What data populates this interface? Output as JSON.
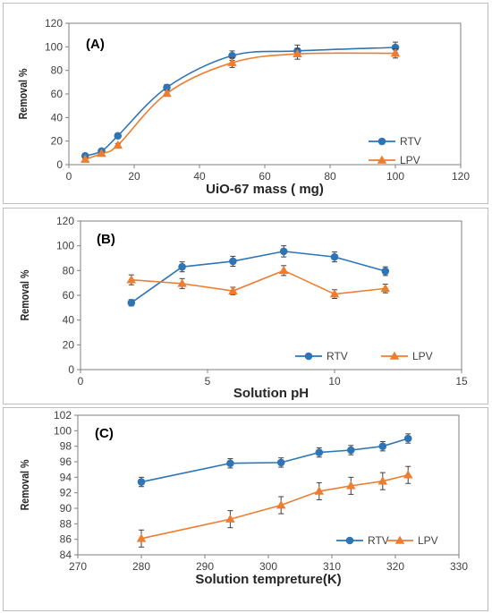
{
  "chart_data": [
    {
      "type": "line",
      "panel_label": "(A)",
      "xlabel": "UiO-67 mass ( mg)",
      "ylabel": "Removal %",
      "xlim": [
        0,
        120
      ],
      "ylim": [
        0,
        120
      ],
      "xticks": [
        0,
        20,
        40,
        60,
        80,
        100,
        120
      ],
      "yticks": [
        0,
        20,
        40,
        60,
        80,
        100,
        120
      ],
      "grid": false,
      "legend": "bottom-right, stacked",
      "series": [
        {
          "name": "RTV",
          "color": "#2e75b6",
          "marker": "circle",
          "smooth": true,
          "x": [
            5,
            10,
            15,
            30,
            50,
            70,
            100
          ],
          "y": [
            7.5,
            11.5,
            24.5,
            65.5,
            92.5,
            96.5,
            99.5
          ],
          "err": [
            1,
            1,
            1.5,
            2.5,
            4,
            5,
            4.5
          ]
        },
        {
          "name": "LPV",
          "color": "#ed7d31",
          "marker": "triangle",
          "smooth": true,
          "x": [
            5,
            10,
            15,
            30,
            50,
            70,
            100
          ],
          "y": [
            4.5,
            9.5,
            16.5,
            60.5,
            86.5,
            94,
            94.5
          ],
          "err": [
            1,
            1,
            1.5,
            2.5,
            4,
            4.5,
            4
          ]
        }
      ]
    },
    {
      "type": "line",
      "panel_label": "(B)",
      "xlabel": "Solution pH",
      "ylabel": "Removal %",
      "xlim": [
        0,
        15
      ],
      "ylim": [
        0,
        120
      ],
      "xticks": [
        0,
        5,
        10,
        15
      ],
      "yticks": [
        0,
        20,
        40,
        60,
        80,
        100,
        120
      ],
      "grid": false,
      "legend": "bottom-right, side by side",
      "series": [
        {
          "name": "RTV",
          "color": "#2e75b6",
          "marker": "circle",
          "smooth": false,
          "x": [
            2,
            4,
            6,
            8,
            10,
            12
          ],
          "y": [
            54,
            83,
            87.5,
            95.5,
            91,
            79.5
          ],
          "err": [
            2.5,
            4,
            4,
            4.5,
            4,
            3.5
          ]
        },
        {
          "name": "LPV",
          "color": "#ed7d31",
          "marker": "triangle",
          "smooth": false,
          "x": [
            2,
            4,
            6,
            8,
            10,
            12
          ],
          "y": [
            72.5,
            69.5,
            63.5,
            80,
            61,
            65.5
          ],
          "err": [
            4,
            4,
            3,
            4,
            3.5,
            3.5
          ]
        }
      ]
    },
    {
      "type": "line",
      "panel_label": "(C)",
      "xlabel": "Solution tempreture(K)",
      "ylabel": "Removal %",
      "xlim": [
        270,
        330
      ],
      "ylim": [
        84,
        102
      ],
      "xticks": [
        270,
        280,
        290,
        300,
        310,
        320,
        330
      ],
      "yticks": [
        84,
        86,
        88,
        90,
        92,
        94,
        96,
        98,
        100,
        102
      ],
      "grid": false,
      "legend": "bottom-right, side by side",
      "series": [
        {
          "name": "RTV",
          "color": "#2e75b6",
          "marker": "circle",
          "smooth": false,
          "x": [
            280,
            294,
            302,
            308,
            313,
            318,
            322
          ],
          "y": [
            93.4,
            95.8,
            95.9,
            97.2,
            97.5,
            98.0,
            99.0
          ],
          "err": [
            0.6,
            0.6,
            0.6,
            0.6,
            0.6,
            0.6,
            0.6
          ]
        },
        {
          "name": "LPV",
          "color": "#ed7d31",
          "marker": "triangle",
          "smooth": false,
          "x": [
            280,
            294,
            302,
            308,
            313,
            318,
            322
          ],
          "y": [
            86.1,
            88.6,
            90.4,
            92.2,
            92.9,
            93.5,
            94.3
          ],
          "err": [
            1.1,
            1.1,
            1.1,
            1.1,
            1.1,
            1.1,
            1.1
          ]
        }
      ]
    }
  ]
}
